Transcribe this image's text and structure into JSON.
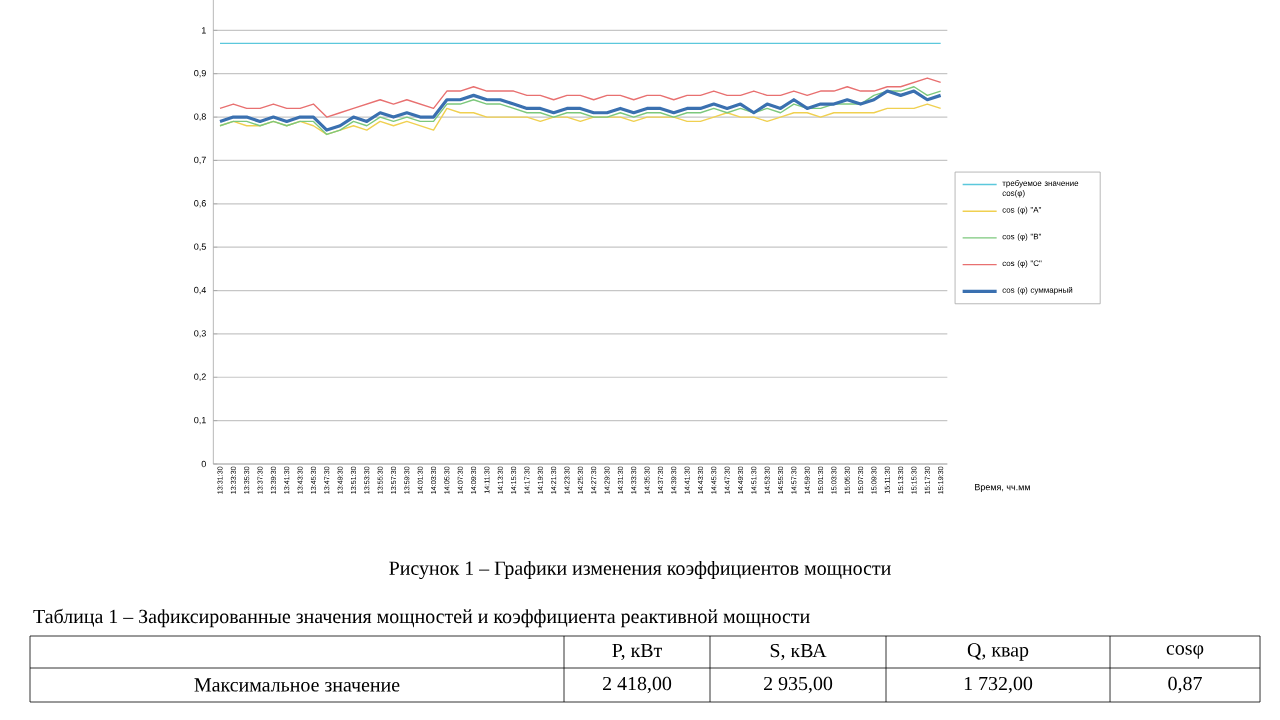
{
  "chart_data": {
    "type": "line",
    "categories": [
      "13:31:30",
      "13:33:30",
      "13:35:30",
      "13:37:30",
      "13:39:30",
      "13:41:30",
      "13:43:30",
      "13:45:30",
      "13:47:30",
      "13:49:30",
      "13:51:30",
      "13:53:30",
      "13:55:30",
      "13:57:30",
      "13:59:30",
      "14:01:30",
      "14:03:30",
      "14:05:30",
      "14:07:30",
      "14:09:30",
      "14:11:30",
      "14:13:30",
      "14:15:30",
      "14:17:30",
      "14:19:30",
      "14:21:30",
      "14:23:30",
      "14:25:30",
      "14:27:30",
      "14:29:30",
      "14:31:30",
      "14:33:30",
      "14:35:30",
      "14:37:30",
      "14:39:30",
      "14:41:30",
      "14:43:30",
      "14:45:30",
      "14:47:30",
      "14:49:30",
      "14:51:30",
      "14:53:30",
      "14:55:30",
      "14:57:30",
      "14:59:30",
      "15:01:30",
      "15:03:30",
      "15:05:30",
      "15:07:30",
      "15:09:30",
      "15:11:30",
      "15:13:30",
      "15:15:30",
      "15:17:30",
      "15:19:30"
    ],
    "series": [
      {
        "name": "требуемое значение cos(φ)",
        "color": "#5bc8dc",
        "values": [
          0.97,
          0.97,
          0.97,
          0.97,
          0.97,
          0.97,
          0.97,
          0.97,
          0.97,
          0.97,
          0.97,
          0.97,
          0.97,
          0.97,
          0.97,
          0.97,
          0.97,
          0.97,
          0.97,
          0.97,
          0.97,
          0.97,
          0.97,
          0.97,
          0.97,
          0.97,
          0.97,
          0.97,
          0.97,
          0.97,
          0.97,
          0.97,
          0.97,
          0.97,
          0.97,
          0.97,
          0.97,
          0.97,
          0.97,
          0.97,
          0.97,
          0.97,
          0.97,
          0.97,
          0.97,
          0.97,
          0.97,
          0.97,
          0.97,
          0.97,
          0.97,
          0.97,
          0.97,
          0.97,
          0.97
        ]
      },
      {
        "name": "cos (φ) \"A\"",
        "color": "#f0d050",
        "values": [
          0.78,
          0.79,
          0.78,
          0.78,
          0.79,
          0.78,
          0.79,
          0.78,
          0.76,
          0.77,
          0.78,
          0.77,
          0.79,
          0.78,
          0.79,
          0.78,
          0.77,
          0.82,
          0.81,
          0.81,
          0.8,
          0.8,
          0.8,
          0.8,
          0.79,
          0.8,
          0.8,
          0.79,
          0.8,
          0.8,
          0.8,
          0.79,
          0.8,
          0.8,
          0.8,
          0.79,
          0.79,
          0.8,
          0.81,
          0.8,
          0.8,
          0.79,
          0.8,
          0.81,
          0.81,
          0.8,
          0.81,
          0.81,
          0.81,
          0.81,
          0.82,
          0.82,
          0.82,
          0.83,
          0.82
        ]
      },
      {
        "name": "cos (φ) \"B\"",
        "color": "#7cc87c",
        "values": [
          0.78,
          0.79,
          0.79,
          0.78,
          0.79,
          0.78,
          0.79,
          0.79,
          0.76,
          0.77,
          0.79,
          0.78,
          0.8,
          0.79,
          0.8,
          0.79,
          0.79,
          0.83,
          0.83,
          0.84,
          0.83,
          0.83,
          0.82,
          0.81,
          0.81,
          0.8,
          0.81,
          0.81,
          0.8,
          0.8,
          0.81,
          0.8,
          0.81,
          0.81,
          0.8,
          0.81,
          0.81,
          0.82,
          0.81,
          0.82,
          0.81,
          0.82,
          0.81,
          0.83,
          0.82,
          0.82,
          0.83,
          0.83,
          0.83,
          0.85,
          0.86,
          0.86,
          0.87,
          0.85,
          0.86
        ]
      },
      {
        "name": "cos (φ) \"C\"",
        "color": "#e87070",
        "values": [
          0.82,
          0.83,
          0.82,
          0.82,
          0.83,
          0.82,
          0.82,
          0.83,
          0.8,
          0.81,
          0.82,
          0.83,
          0.84,
          0.83,
          0.84,
          0.83,
          0.82,
          0.86,
          0.86,
          0.87,
          0.86,
          0.86,
          0.86,
          0.85,
          0.85,
          0.84,
          0.85,
          0.85,
          0.84,
          0.85,
          0.85,
          0.84,
          0.85,
          0.85,
          0.84,
          0.85,
          0.85,
          0.86,
          0.85,
          0.85,
          0.86,
          0.85,
          0.85,
          0.86,
          0.85,
          0.86,
          0.86,
          0.87,
          0.86,
          0.86,
          0.87,
          0.87,
          0.88,
          0.89,
          0.88
        ]
      },
      {
        "name": "cos (φ) суммарный",
        "color": "#3a70b0",
        "values": [
          0.79,
          0.8,
          0.8,
          0.79,
          0.8,
          0.79,
          0.8,
          0.8,
          0.77,
          0.78,
          0.8,
          0.79,
          0.81,
          0.8,
          0.81,
          0.8,
          0.8,
          0.84,
          0.84,
          0.85,
          0.84,
          0.84,
          0.83,
          0.82,
          0.82,
          0.81,
          0.82,
          0.82,
          0.81,
          0.81,
          0.82,
          0.81,
          0.82,
          0.82,
          0.81,
          0.82,
          0.82,
          0.83,
          0.82,
          0.83,
          0.81,
          0.83,
          0.82,
          0.84,
          0.82,
          0.83,
          0.83,
          0.84,
          0.83,
          0.84,
          0.86,
          0.85,
          0.86,
          0.84,
          0.85
        ]
      }
    ],
    "xlabel": "Время, чч.мм",
    "ylim": [
      0,
      1.07
    ],
    "yticks": [
      0,
      {
        "value": 0.1,
        "label": "0,1"
      },
      {
        "value": 0.2,
        "label": "0,2"
      },
      {
        "value": 0.3,
        "label": "0,3"
      },
      {
        "value": 0.4,
        "label": "0,4"
      },
      {
        "value": 0.5,
        "label": "0,5"
      },
      {
        "value": 0.6,
        "label": "0,6"
      },
      {
        "value": 0.7,
        "label": "0,7"
      },
      {
        "value": 0.8,
        "label": "0,8"
      },
      {
        "value": 0.9,
        "label": "0,9"
      },
      1
    ],
    "grid": "y",
    "legend": "right",
    "marker": "none",
    "annotations": [
      "Рисунок 1 – Графики изменения коэффициентов мощности",
      "Таблица 1 – Зафиксированные значения мощностей и коэффициента реактивной мощности",
      "P, кВт",
      "S, кВА",
      "Q, квар",
      "cosφ",
      "Максимальное значение",
      "2 418,00",
      "2 935,00",
      "1 732,00",
      "0,87"
    ]
  }
}
